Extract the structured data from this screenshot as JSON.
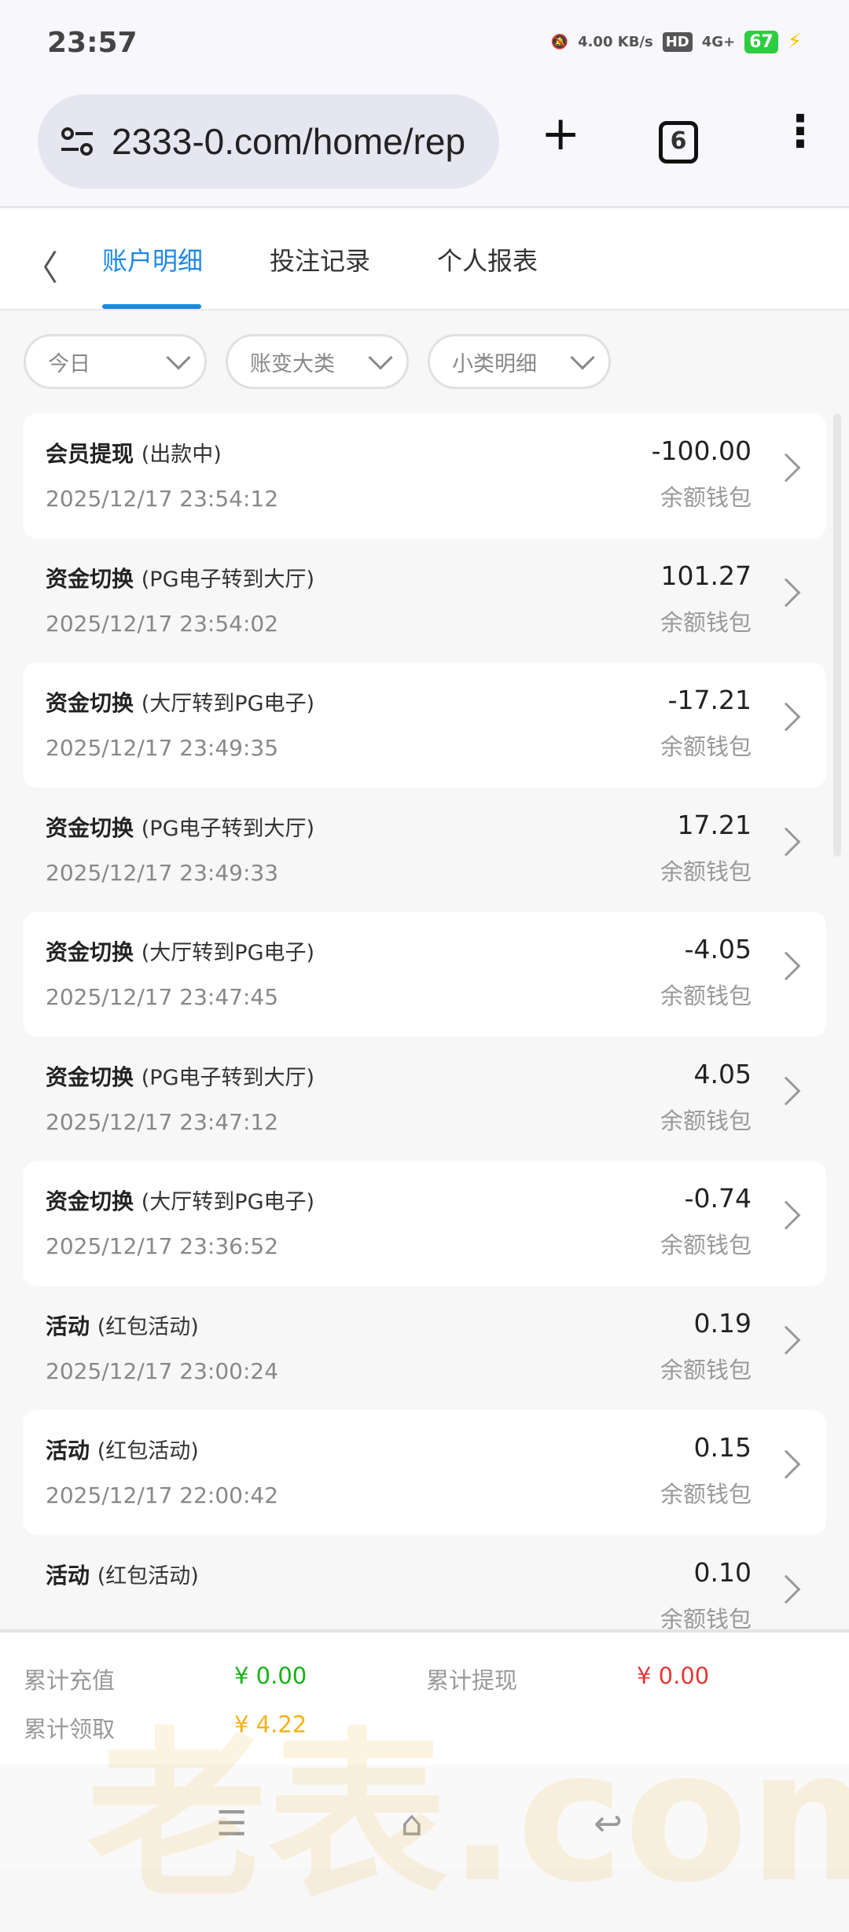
{
  "status_bar": {
    "time": "23:57",
    "net_speed": "4.00 KB/s",
    "hd": "HD",
    "signal": "4G+",
    "battery": "67"
  },
  "browser": {
    "url": "2333-0.com/home/rep",
    "tab_count": "6"
  },
  "tabs": [
    {
      "label": "账户明细",
      "active": true
    },
    {
      "label": "投注记录"
    },
    {
      "label": "个人报表"
    }
  ],
  "filters": [
    {
      "label": "今日"
    },
    {
      "label": "账变大类"
    },
    {
      "label": "小类明细"
    }
  ],
  "records": [
    {
      "title": "会员提现",
      "sub": "(出款中)",
      "date": "2025/12/17 23:54:12",
      "amount": "-100.00",
      "wallet": "余额钱包"
    },
    {
      "title": "资金切换",
      "sub": "(PG电子转到大厅)",
      "date": "2025/12/17 23:54:02",
      "amount": "101.27",
      "wallet": "余额钱包"
    },
    {
      "title": "资金切换",
      "sub": "(大厅转到PG电子)",
      "date": "2025/12/17 23:49:35",
      "amount": "-17.21",
      "wallet": "余额钱包"
    },
    {
      "title": "资金切换",
      "sub": "(PG电子转到大厅)",
      "date": "2025/12/17 23:49:33",
      "amount": "17.21",
      "wallet": "余额钱包"
    },
    {
      "title": "资金切换",
      "sub": "(大厅转到PG电子)",
      "date": "2025/12/17 23:47:45",
      "amount": "-4.05",
      "wallet": "余额钱包"
    },
    {
      "title": "资金切换",
      "sub": "(PG电子转到大厅)",
      "date": "2025/12/17 23:47:12",
      "amount": "4.05",
      "wallet": "余额钱包"
    },
    {
      "title": "资金切换",
      "sub": "(大厅转到PG电子)",
      "date": "2025/12/17 23:36:52",
      "amount": "-0.74",
      "wallet": "余额钱包"
    },
    {
      "title": "活动",
      "sub": "(红包活动)",
      "date": "2025/12/17 23:00:24",
      "amount": "0.19",
      "wallet": "余额钱包"
    },
    {
      "title": "活动",
      "sub": "(红包活动)",
      "date": "2025/12/17 22:00:42",
      "amount": "0.15",
      "wallet": "余额钱包"
    },
    {
      "title": "活动",
      "sub": "(红包活动)",
      "date": "",
      "amount": "0.10",
      "wallet": "余额钱包"
    }
  ],
  "summary": {
    "recharge_label": "累计充值",
    "recharge_value": "¥ 0.00",
    "recharge_color": "#17b317",
    "withdraw_label": "累计提现",
    "withdraw_value": "¥ 0.00",
    "withdraw_color": "#e53935",
    "claim_label": "累计领取",
    "claim_value": "¥ 4.22",
    "claim_color": "#f5b21b"
  },
  "watermark": "老表.com"
}
